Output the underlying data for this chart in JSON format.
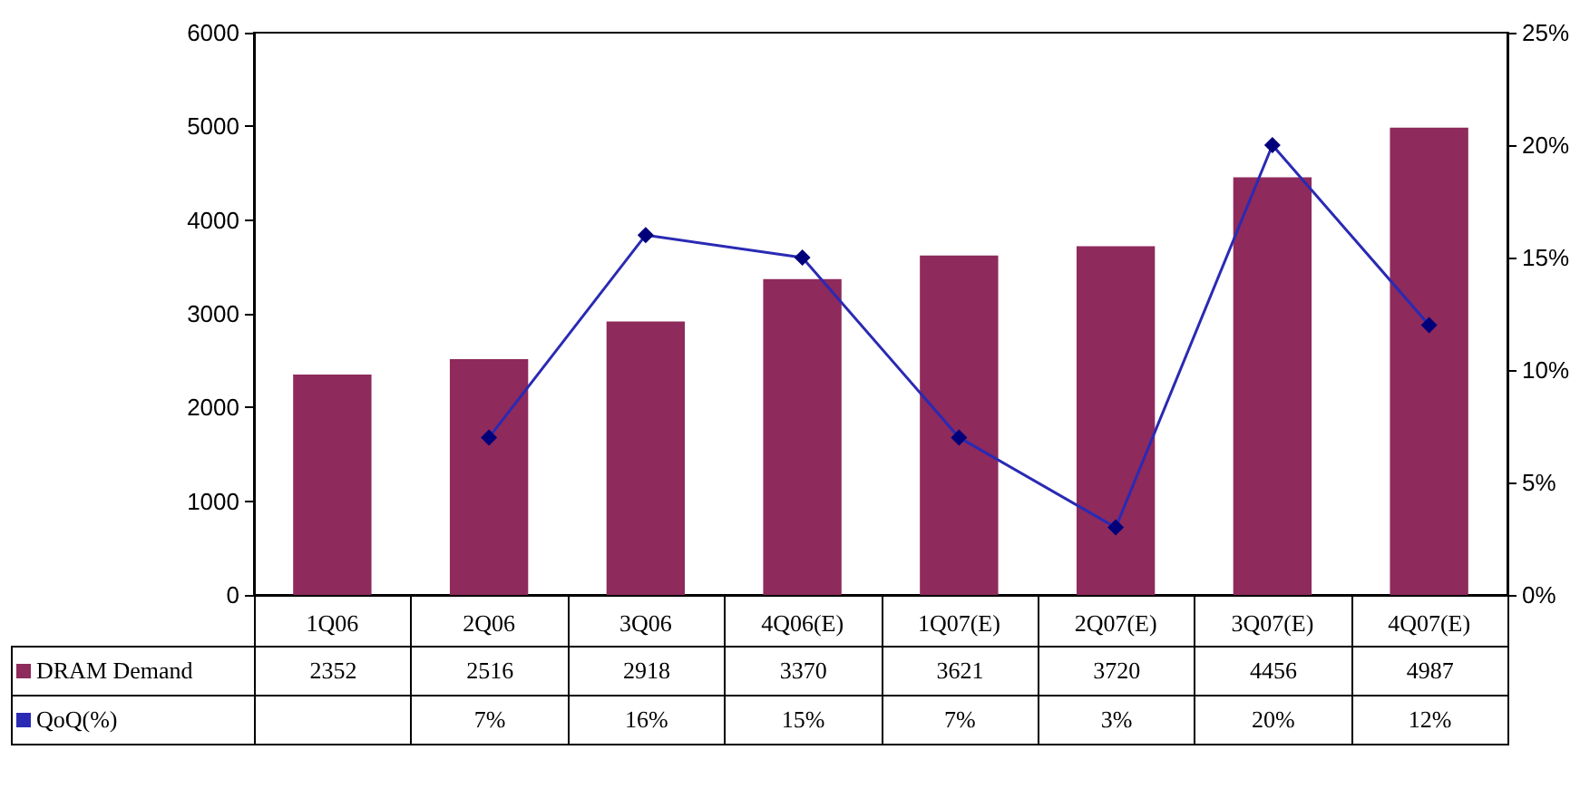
{
  "chart_data": {
    "type": "bar",
    "categories": [
      "1Q06",
      "2Q06",
      "3Q06",
      "4Q06(E)",
      "1Q07(E)",
      "2Q07(E)",
      "3Q07(E)",
      "4Q07(E)"
    ],
    "series": [
      {
        "name": "DRAM Demand",
        "color": "#8e2a5c",
        "values": [
          2352,
          2516,
          2918,
          3370,
          3621,
          3720,
          4456,
          4987
        ],
        "data_labels": true
      },
      {
        "name": "QoQ(%)",
        "type": "line",
        "axis": "y2",
        "color": "#2a2ab4",
        "marker": "diamond",
        "values": [
          null,
          7,
          16,
          15,
          7,
          3,
          20,
          12
        ],
        "value_labels": [
          null,
          "7%",
          "16%",
          "15%",
          "7%",
          "3%",
          "20%",
          "12%"
        ]
      }
    ],
    "ylim": [
      0,
      6000
    ],
    "yticks": [
      0,
      1000,
      2000,
      3000,
      4000,
      5000,
      6000
    ],
    "y2lim": [
      0,
      25
    ],
    "y2ticks": [
      {
        "value": 0,
        "label": "0%"
      },
      {
        "value": 5,
        "label": "5%"
      },
      {
        "value": 10,
        "label": "10%"
      },
      {
        "value": 15,
        "label": "15%"
      },
      {
        "value": 20,
        "label": "20%"
      },
      {
        "value": 25,
        "label": "25%"
      }
    ],
    "grid": false,
    "legend": "bottom left"
  }
}
